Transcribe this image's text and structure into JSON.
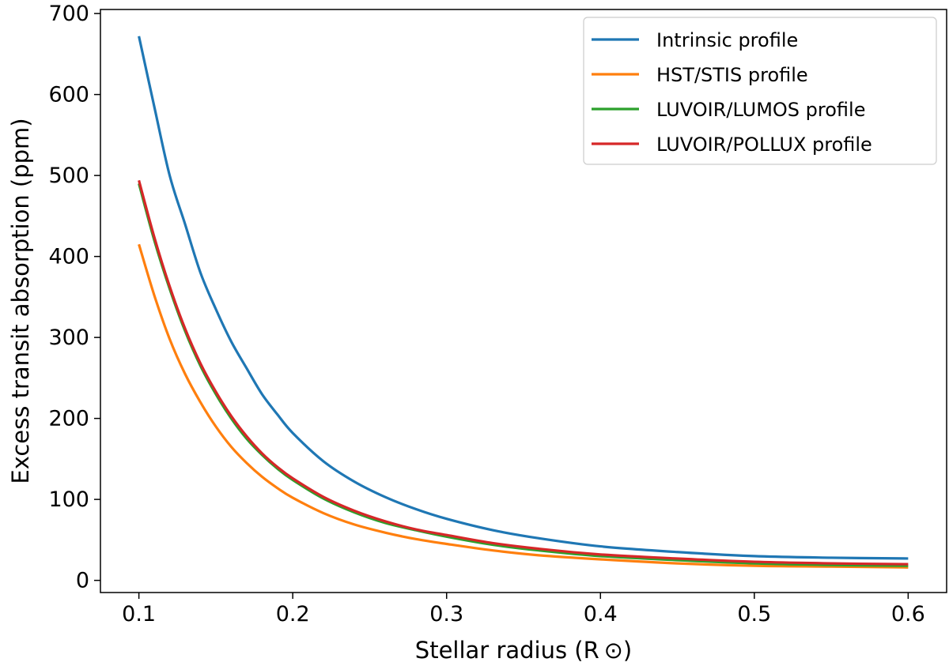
{
  "chart_data": {
    "type": "line",
    "title": "",
    "xlabel": "Stellar radius (R ⊙)",
    "ylabel": "Excess transit absorption (ppm)",
    "xlim": [
      0.075,
      0.625
    ],
    "ylim": [
      -15,
      705
    ],
    "xticks": [
      0.1,
      0.2,
      0.3,
      0.4,
      0.5,
      0.6
    ],
    "xtick_labels": [
      "0.1",
      "0.2",
      "0.3",
      "0.4",
      "0.5",
      "0.6"
    ],
    "yticks": [
      0,
      100,
      200,
      300,
      400,
      500,
      600,
      700
    ],
    "ytick_labels": [
      "0",
      "100",
      "200",
      "300",
      "400",
      "500",
      "600",
      "700"
    ],
    "grid": false,
    "legend_position": "top-right",
    "x": [
      0.1,
      0.11,
      0.12,
      0.13,
      0.14,
      0.15,
      0.16,
      0.17,
      0.18,
      0.19,
      0.2,
      0.22,
      0.24,
      0.26,
      0.28,
      0.3,
      0.33,
      0.36,
      0.4,
      0.45,
      0.5,
      0.55,
      0.6
    ],
    "series": [
      {
        "name": "Intrinsic profile",
        "color": "#1f77b4",
        "values": [
          672,
          585,
          500,
          440,
          380,
          335,
          295,
          262,
          230,
          205,
          182,
          147,
          122,
          103,
          88,
          76,
          62,
          52,
          42,
          35,
          30,
          28,
          27
        ]
      },
      {
        "name": "HST/STIS profile",
        "color": "#ff7f0e",
        "values": [
          415,
          352,
          298,
          255,
          220,
          190,
          165,
          145,
          128,
          114,
          102,
          83,
          69,
          59,
          51,
          45,
          37,
          31,
          26,
          21,
          18,
          17,
          16
        ]
      },
      {
        "name": "LUVOIR/LUMOS profile",
        "color": "#2ca02c",
        "values": [
          490,
          420,
          360,
          308,
          265,
          230,
          200,
          175,
          155,
          138,
          124,
          101,
          84,
          71,
          62,
          54,
          44,
          37,
          30,
          25,
          21,
          19,
          18
        ]
      },
      {
        "name": "LUVOIR/POLLUX profile",
        "color": "#d62728",
        "values": [
          494,
          424,
          363,
          311,
          268,
          233,
          203,
          178,
          157,
          140,
          126,
          103,
          86,
          73,
          63,
          56,
          46,
          39,
          32,
          27,
          23,
          21,
          20
        ]
      }
    ]
  }
}
